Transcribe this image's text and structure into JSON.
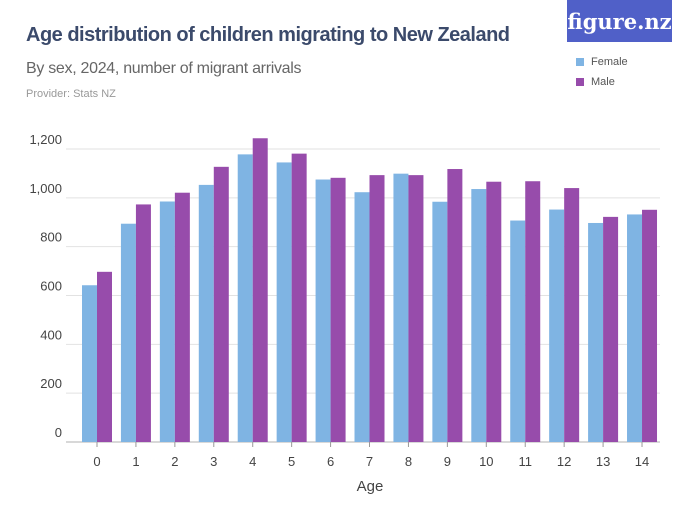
{
  "title": "Age distribution of children migrating to New Zealand",
  "subtitle": "By sex, 2024, number of migrant arrivals",
  "provider": "Provider: Stats NZ",
  "logo": "figure.nz",
  "chart_data": {
    "type": "bar",
    "title": "Age distribution of children migrating to New Zealand",
    "subtitle": "By sex, 2024, number of migrant arrivals",
    "xlabel": "Age",
    "ylabel": "",
    "ylim": [
      0,
      1200
    ],
    "yticks": [
      0,
      200,
      400,
      600,
      800,
      "1,000",
      "1,200"
    ],
    "grid": true,
    "legend": "top-right",
    "categories": [
      "0",
      "1",
      "2",
      "3",
      "4",
      "5",
      "6",
      "7",
      "8",
      "9",
      "10",
      "11",
      "12",
      "13",
      "14"
    ],
    "series": [
      {
        "name": "Female",
        "color": "#7fb4e3",
        "values": [
          642,
          894,
          985,
          1053,
          1178,
          1145,
          1075,
          1023,
          1099,
          984,
          1036,
          907,
          952,
          897,
          932
        ]
      },
      {
        "name": "Male",
        "color": "#974cab",
        "values": [
          697,
          973,
          1021,
          1127,
          1244,
          1181,
          1082,
          1093,
          1093,
          1118,
          1066,
          1068,
          1040,
          922,
          951
        ]
      }
    ]
  }
}
